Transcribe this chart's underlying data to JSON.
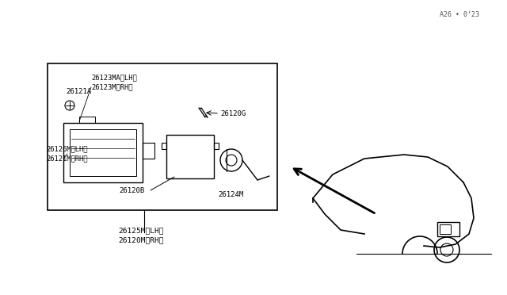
{
  "bg_color": "#ffffff",
  "line_color": "#000000",
  "fig_width": 6.4,
  "fig_height": 3.72,
  "watermark": "A26 • 0ʼ23",
  "labels": {
    "top_label1": "26120M〈RH〉",
    "top_label2": "26125M〈LH〉",
    "label_26120B": "26120B",
    "label_26121M_RH": "26121M〈RH〉",
    "label_26126M_LH": "26126M〈LH〉",
    "label_26124M": "26124M",
    "label_26120G": "26120G",
    "label_26123M_RH": "26123M〈RH〉",
    "label_26123MA_LH": "26123MA〈LH〉",
    "label_26121A": "26121A"
  }
}
